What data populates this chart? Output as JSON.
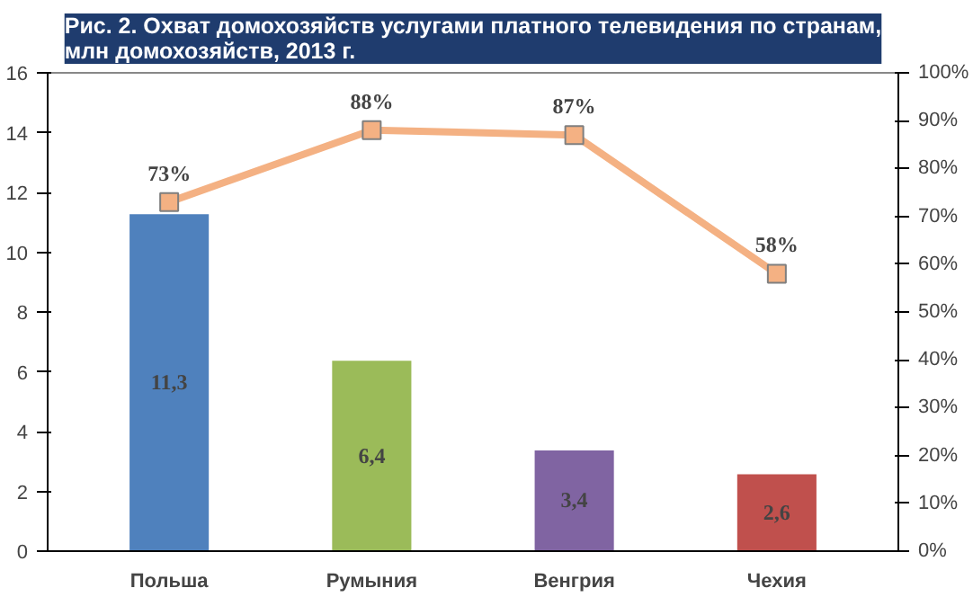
{
  "chart_data": {
    "type": "bar",
    "title": "Рис. 2. Охват домохозяйств услугами платного телевидения по странам,\nмлн домохозяйств, 2013 г.",
    "categories": [
      "Польша",
      "Румыния",
      "Венгрия",
      "Чехия"
    ],
    "series": [
      {
        "colors": [
          "#4f81bd",
          "#9bbb59",
          "#8064a2",
          "#c0504d"
        ],
        "values": [
          11.3,
          6.4,
          3.4,
          2.6
        ],
        "value_labels": [
          "11,3",
          "6,4",
          "3,4",
          "2,6"
        ]
      },
      {
        "type": "line",
        "axis": "y2",
        "color": "#f4b183",
        "marker": "square",
        "values": [
          73,
          88,
          87,
          58
        ],
        "value_labels": [
          "73%",
          "88%",
          "87%",
          "58%"
        ]
      }
    ],
    "ylim": [
      0,
      16
    ],
    "yticks": [
      0,
      2,
      4,
      6,
      8,
      10,
      12,
      14,
      16
    ],
    "y2lim": [
      0,
      100
    ],
    "y2ticks": [
      {
        "value": 0,
        "label": "0%"
      },
      {
        "value": 10,
        "label": "10%"
      },
      {
        "value": 20,
        "label": "20%"
      },
      {
        "value": 30,
        "label": "30%"
      },
      {
        "value": 40,
        "label": "40%"
      },
      {
        "value": 50,
        "label": "50%"
      },
      {
        "value": 60,
        "label": "60%"
      },
      {
        "value": 70,
        "label": "70%"
      },
      {
        "value": 80,
        "label": "80%"
      },
      {
        "value": 90,
        "label": "90%"
      },
      {
        "value": 100,
        "label": "100%"
      }
    ],
    "grid": false
  }
}
